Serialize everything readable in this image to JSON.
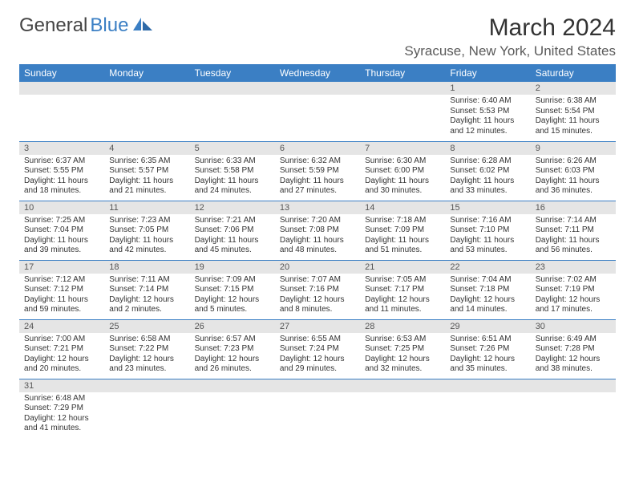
{
  "logo": {
    "text1": "General",
    "text2": "Blue"
  },
  "title": "March 2024",
  "location": "Syracuse, New York, United States",
  "colors": {
    "header_bg": "#3b7fc4",
    "header_text": "#ffffff",
    "daynum_bg": "#e5e5e5",
    "border": "#3b7fc4",
    "logo_blue": "#3b7fc4"
  },
  "daysOfWeek": [
    "Sunday",
    "Monday",
    "Tuesday",
    "Wednesday",
    "Thursday",
    "Friday",
    "Saturday"
  ],
  "weeks": [
    [
      {
        "n": "",
        "sunrise": "",
        "sunset": "",
        "daylight": ""
      },
      {
        "n": "",
        "sunrise": "",
        "sunset": "",
        "daylight": ""
      },
      {
        "n": "",
        "sunrise": "",
        "sunset": "",
        "daylight": ""
      },
      {
        "n": "",
        "sunrise": "",
        "sunset": "",
        "daylight": ""
      },
      {
        "n": "",
        "sunrise": "",
        "sunset": "",
        "daylight": ""
      },
      {
        "n": "1",
        "sunrise": "Sunrise: 6:40 AM",
        "sunset": "Sunset: 5:53 PM",
        "daylight": "Daylight: 11 hours and 12 minutes."
      },
      {
        "n": "2",
        "sunrise": "Sunrise: 6:38 AM",
        "sunset": "Sunset: 5:54 PM",
        "daylight": "Daylight: 11 hours and 15 minutes."
      }
    ],
    [
      {
        "n": "3",
        "sunrise": "Sunrise: 6:37 AM",
        "sunset": "Sunset: 5:55 PM",
        "daylight": "Daylight: 11 hours and 18 minutes."
      },
      {
        "n": "4",
        "sunrise": "Sunrise: 6:35 AM",
        "sunset": "Sunset: 5:57 PM",
        "daylight": "Daylight: 11 hours and 21 minutes."
      },
      {
        "n": "5",
        "sunrise": "Sunrise: 6:33 AM",
        "sunset": "Sunset: 5:58 PM",
        "daylight": "Daylight: 11 hours and 24 minutes."
      },
      {
        "n": "6",
        "sunrise": "Sunrise: 6:32 AM",
        "sunset": "Sunset: 5:59 PM",
        "daylight": "Daylight: 11 hours and 27 minutes."
      },
      {
        "n": "7",
        "sunrise": "Sunrise: 6:30 AM",
        "sunset": "Sunset: 6:00 PM",
        "daylight": "Daylight: 11 hours and 30 minutes."
      },
      {
        "n": "8",
        "sunrise": "Sunrise: 6:28 AM",
        "sunset": "Sunset: 6:02 PM",
        "daylight": "Daylight: 11 hours and 33 minutes."
      },
      {
        "n": "9",
        "sunrise": "Sunrise: 6:26 AM",
        "sunset": "Sunset: 6:03 PM",
        "daylight": "Daylight: 11 hours and 36 minutes."
      }
    ],
    [
      {
        "n": "10",
        "sunrise": "Sunrise: 7:25 AM",
        "sunset": "Sunset: 7:04 PM",
        "daylight": "Daylight: 11 hours and 39 minutes."
      },
      {
        "n": "11",
        "sunrise": "Sunrise: 7:23 AM",
        "sunset": "Sunset: 7:05 PM",
        "daylight": "Daylight: 11 hours and 42 minutes."
      },
      {
        "n": "12",
        "sunrise": "Sunrise: 7:21 AM",
        "sunset": "Sunset: 7:06 PM",
        "daylight": "Daylight: 11 hours and 45 minutes."
      },
      {
        "n": "13",
        "sunrise": "Sunrise: 7:20 AM",
        "sunset": "Sunset: 7:08 PM",
        "daylight": "Daylight: 11 hours and 48 minutes."
      },
      {
        "n": "14",
        "sunrise": "Sunrise: 7:18 AM",
        "sunset": "Sunset: 7:09 PM",
        "daylight": "Daylight: 11 hours and 51 minutes."
      },
      {
        "n": "15",
        "sunrise": "Sunrise: 7:16 AM",
        "sunset": "Sunset: 7:10 PM",
        "daylight": "Daylight: 11 hours and 53 minutes."
      },
      {
        "n": "16",
        "sunrise": "Sunrise: 7:14 AM",
        "sunset": "Sunset: 7:11 PM",
        "daylight": "Daylight: 11 hours and 56 minutes."
      }
    ],
    [
      {
        "n": "17",
        "sunrise": "Sunrise: 7:12 AM",
        "sunset": "Sunset: 7:12 PM",
        "daylight": "Daylight: 11 hours and 59 minutes."
      },
      {
        "n": "18",
        "sunrise": "Sunrise: 7:11 AM",
        "sunset": "Sunset: 7:14 PM",
        "daylight": "Daylight: 12 hours and 2 minutes."
      },
      {
        "n": "19",
        "sunrise": "Sunrise: 7:09 AM",
        "sunset": "Sunset: 7:15 PM",
        "daylight": "Daylight: 12 hours and 5 minutes."
      },
      {
        "n": "20",
        "sunrise": "Sunrise: 7:07 AM",
        "sunset": "Sunset: 7:16 PM",
        "daylight": "Daylight: 12 hours and 8 minutes."
      },
      {
        "n": "21",
        "sunrise": "Sunrise: 7:05 AM",
        "sunset": "Sunset: 7:17 PM",
        "daylight": "Daylight: 12 hours and 11 minutes."
      },
      {
        "n": "22",
        "sunrise": "Sunrise: 7:04 AM",
        "sunset": "Sunset: 7:18 PM",
        "daylight": "Daylight: 12 hours and 14 minutes."
      },
      {
        "n": "23",
        "sunrise": "Sunrise: 7:02 AM",
        "sunset": "Sunset: 7:19 PM",
        "daylight": "Daylight: 12 hours and 17 minutes."
      }
    ],
    [
      {
        "n": "24",
        "sunrise": "Sunrise: 7:00 AM",
        "sunset": "Sunset: 7:21 PM",
        "daylight": "Daylight: 12 hours and 20 minutes."
      },
      {
        "n": "25",
        "sunrise": "Sunrise: 6:58 AM",
        "sunset": "Sunset: 7:22 PM",
        "daylight": "Daylight: 12 hours and 23 minutes."
      },
      {
        "n": "26",
        "sunrise": "Sunrise: 6:57 AM",
        "sunset": "Sunset: 7:23 PM",
        "daylight": "Daylight: 12 hours and 26 minutes."
      },
      {
        "n": "27",
        "sunrise": "Sunrise: 6:55 AM",
        "sunset": "Sunset: 7:24 PM",
        "daylight": "Daylight: 12 hours and 29 minutes."
      },
      {
        "n": "28",
        "sunrise": "Sunrise: 6:53 AM",
        "sunset": "Sunset: 7:25 PM",
        "daylight": "Daylight: 12 hours and 32 minutes."
      },
      {
        "n": "29",
        "sunrise": "Sunrise: 6:51 AM",
        "sunset": "Sunset: 7:26 PM",
        "daylight": "Daylight: 12 hours and 35 minutes."
      },
      {
        "n": "30",
        "sunrise": "Sunrise: 6:49 AM",
        "sunset": "Sunset: 7:28 PM",
        "daylight": "Daylight: 12 hours and 38 minutes."
      }
    ],
    [
      {
        "n": "31",
        "sunrise": "Sunrise: 6:48 AM",
        "sunset": "Sunset: 7:29 PM",
        "daylight": "Daylight: 12 hours and 41 minutes."
      },
      {
        "n": "",
        "sunrise": "",
        "sunset": "",
        "daylight": ""
      },
      {
        "n": "",
        "sunrise": "",
        "sunset": "",
        "daylight": ""
      },
      {
        "n": "",
        "sunrise": "",
        "sunset": "",
        "daylight": ""
      },
      {
        "n": "",
        "sunrise": "",
        "sunset": "",
        "daylight": ""
      },
      {
        "n": "",
        "sunrise": "",
        "sunset": "",
        "daylight": ""
      },
      {
        "n": "",
        "sunrise": "",
        "sunset": "",
        "daylight": ""
      }
    ]
  ]
}
